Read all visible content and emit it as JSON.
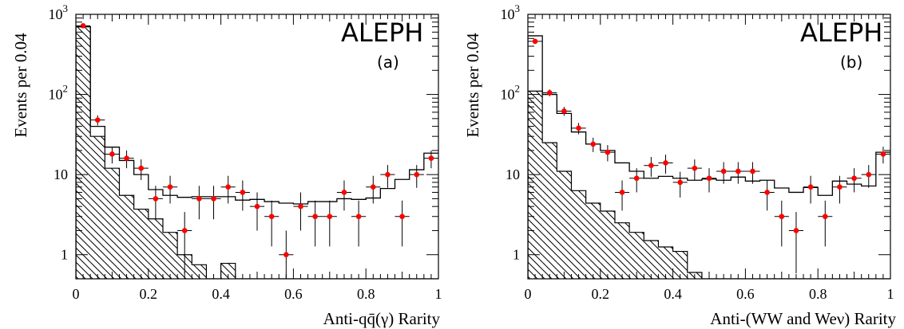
{
  "chart_data": [
    {
      "type": "histogram",
      "panel": "(a)",
      "brand": "ALEPH",
      "ylabel": "Events per 0.04",
      "xlabel": "Anti-qq̄(γ) Rarity",
      "xlim": [
        0,
        1
      ],
      "ylim": [
        0.5,
        1000
      ],
      "yscale": "log",
      "x_ticks": [
        "0",
        "0.2",
        "0.4",
        "0.6",
        "0.8",
        "1"
      ],
      "y_ticks": [
        "1",
        "10",
        "10²",
        "10³"
      ],
      "bin_edges": [
        0,
        0.04,
        0.08,
        0.12,
        0.16,
        0.2,
        0.24,
        0.28,
        0.32,
        0.36,
        0.4,
        0.44,
        0.48,
        0.52,
        0.56,
        0.6,
        0.64,
        0.68,
        0.72,
        0.76,
        0.8,
        0.84,
        0.88,
        0.92,
        0.96,
        1.0
      ],
      "total_mc": [
        700,
        40,
        22,
        15,
        10,
        6.5,
        5.5,
        5.2,
        5.3,
        5.3,
        5.3,
        4.8,
        4.9,
        4.6,
        4.4,
        4.3,
        4.6,
        4.6,
        5.0,
        4.9,
        5.1,
        6.7,
        8.7,
        11.5,
        18.5
      ],
      "hatched_background": [
        700,
        30,
        12,
        5.5,
        3.7,
        2.8,
        1.9,
        1.0,
        0.75,
        0.5,
        0.78,
        0.5,
        0.5,
        0.5,
        0.5,
        0.5,
        0.5,
        0.5,
        0.5,
        0.5,
        0.5,
        0.5,
        0.5,
        0.5,
        0.5
      ],
      "data_points": {
        "x": [
          0.02,
          0.06,
          0.1,
          0.14,
          0.18,
          0.22,
          0.26,
          0.3,
          0.34,
          0.38,
          0.42,
          0.46,
          0.5,
          0.54,
          0.58,
          0.62,
          0.66,
          0.7,
          0.74,
          0.78,
          0.82,
          0.86,
          0.9,
          0.94,
          0.98
        ],
        "y": [
          720,
          48,
          18,
          16,
          12,
          5,
          7,
          2,
          5,
          5,
          7,
          6,
          4,
          3,
          1,
          4,
          3,
          3,
          6,
          3,
          7,
          10,
          3,
          10,
          16
        ]
      }
    },
    {
      "type": "histogram",
      "panel": "(b)",
      "brand": "ALEPH",
      "ylabel": "Events per 0.04",
      "xlabel": "Anti-(WW and Weν) Rarity",
      "xlim": [
        0,
        1
      ],
      "ylim": [
        0.5,
        1000
      ],
      "yscale": "log",
      "x_ticks": [
        "0",
        "0.2",
        "0.4",
        "0.6",
        "0.8",
        "1"
      ],
      "y_ticks": [
        "1",
        "10",
        "10²",
        "10³"
      ],
      "bin_edges": [
        0,
        0.04,
        0.08,
        0.12,
        0.16,
        0.2,
        0.24,
        0.28,
        0.32,
        0.36,
        0.4,
        0.44,
        0.48,
        0.52,
        0.56,
        0.6,
        0.64,
        0.68,
        0.72,
        0.76,
        0.8,
        0.84,
        0.88,
        0.92,
        0.96,
        1.0
      ],
      "total_mc": [
        540,
        100,
        58,
        34,
        24,
        20,
        14,
        11,
        9,
        9.5,
        9,
        8.5,
        8.8,
        8.5,
        9.3,
        8.3,
        8.5,
        6.8,
        6.0,
        6.9,
        5.5,
        8.3,
        7.6,
        7.2,
        19
      ],
      "hatched_background": [
        110,
        25,
        11,
        6.3,
        4.4,
        3.5,
        2.5,
        1.9,
        1.5,
        1.25,
        1.1,
        0.6,
        0.5,
        0.5,
        0.5,
        0.5,
        0.5,
        0.5,
        0.5,
        0.5,
        0.5,
        0.5,
        0.5,
        0.5,
        0.5
      ],
      "data_points": {
        "x": [
          0.02,
          0.06,
          0.1,
          0.14,
          0.18,
          0.22,
          0.26,
          0.3,
          0.34,
          0.38,
          0.42,
          0.46,
          0.5,
          0.54,
          0.58,
          0.62,
          0.66,
          0.7,
          0.74,
          0.78,
          0.82,
          0.86,
          0.9,
          0.94,
          0.98
        ],
        "y": [
          460,
          105,
          62,
          38,
          24,
          19,
          6,
          9,
          13,
          14,
          8,
          12,
          9,
          11,
          11,
          11,
          6,
          3,
          2,
          7,
          3,
          7,
          9,
          10,
          18
        ]
      }
    }
  ],
  "colors": {
    "data_marker": "#ff0000",
    "line": "#000000"
  }
}
